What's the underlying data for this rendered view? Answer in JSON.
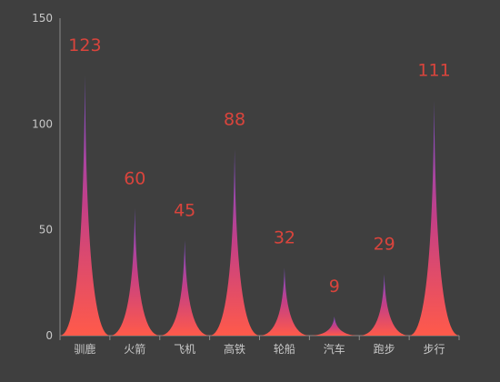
{
  "chart_data": {
    "type": "bar",
    "bar_shape": "pictorial-spike",
    "categories": [
      "驯鹿",
      "火箭",
      "飞机",
      "高铁",
      "轮船",
      "汽车",
      "跑步",
      "步行"
    ],
    "values": [
      123,
      60,
      45,
      88,
      32,
      9,
      29,
      111
    ],
    "ylim": [
      0,
      150
    ],
    "yticks": [
      0,
      50,
      100,
      150
    ],
    "grid": false,
    "legend": "none",
    "colors": {
      "background": "#3f3f3f",
      "gradient_top": "#7b4fd1",
      "gradient_mid": "#c43f86",
      "gradient_bottom": "#ff5a4a",
      "data_label": "#d9443c",
      "axis": "#8a8a8a",
      "tick_text": "#c8c8c8"
    }
  }
}
